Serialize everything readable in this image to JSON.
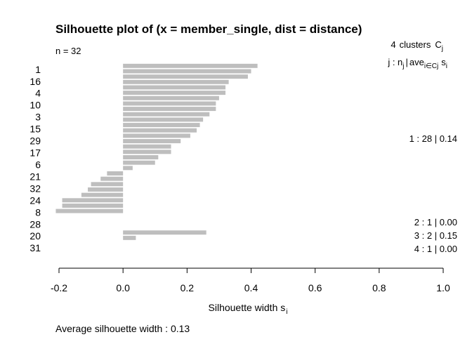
{
  "chart_data": {
    "type": "bar",
    "orientation": "horizontal",
    "title": "Silhouette plot of (x = member_single, dist = distance)",
    "n_label": "n = 32",
    "clusters_header": {
      "count": "4",
      "word": "clusters",
      "symbol": "C",
      "sub": "j"
    },
    "legend_header": {
      "j": "j",
      "n": "n",
      "n_sub": "j",
      "sep": "|",
      "ave": "ave",
      "ave_sub": "i∈Cj",
      "s": "s",
      "s_sub": "i"
    },
    "xlabel": "Silhouette width s",
    "xlabel_sub": "i",
    "xlim": [
      -0.2,
      1.0
    ],
    "xticks": [
      "-0.2",
      "0.0",
      "0.2",
      "0.4",
      "0.6",
      "0.8",
      "1.0"
    ],
    "footer": "Average silhouette width :  0.13",
    "row_labels": [
      "1",
      "16",
      "4",
      "10",
      "3",
      "15",
      "29",
      "17",
      "6",
      "21",
      "32",
      "24",
      "8",
      "28",
      "20",
      "31"
    ],
    "clusters": [
      {
        "summary": "1 :   28  |  0.14",
        "values": [
          0.42,
          0.4,
          0.39,
          0.33,
          0.32,
          0.32,
          0.3,
          0.29,
          0.29,
          0.27,
          0.25,
          0.24,
          0.23,
          0.21,
          0.18,
          0.15,
          0.15,
          0.11,
          0.1,
          0.03,
          -0.05,
          -0.07,
          -0.1,
          -0.11,
          -0.13,
          -0.19,
          -0.19,
          -0.21
        ]
      },
      {
        "summary": "2 :   1  |  0.00",
        "values": [
          0.0
        ]
      },
      {
        "summary": "3 :   2  |  0.15",
        "values": [
          0.26,
          0.04
        ]
      },
      {
        "summary": "4 :   1  |  0.00",
        "values": [
          0.0
        ]
      }
    ],
    "bar_color": "#bebebe"
  }
}
